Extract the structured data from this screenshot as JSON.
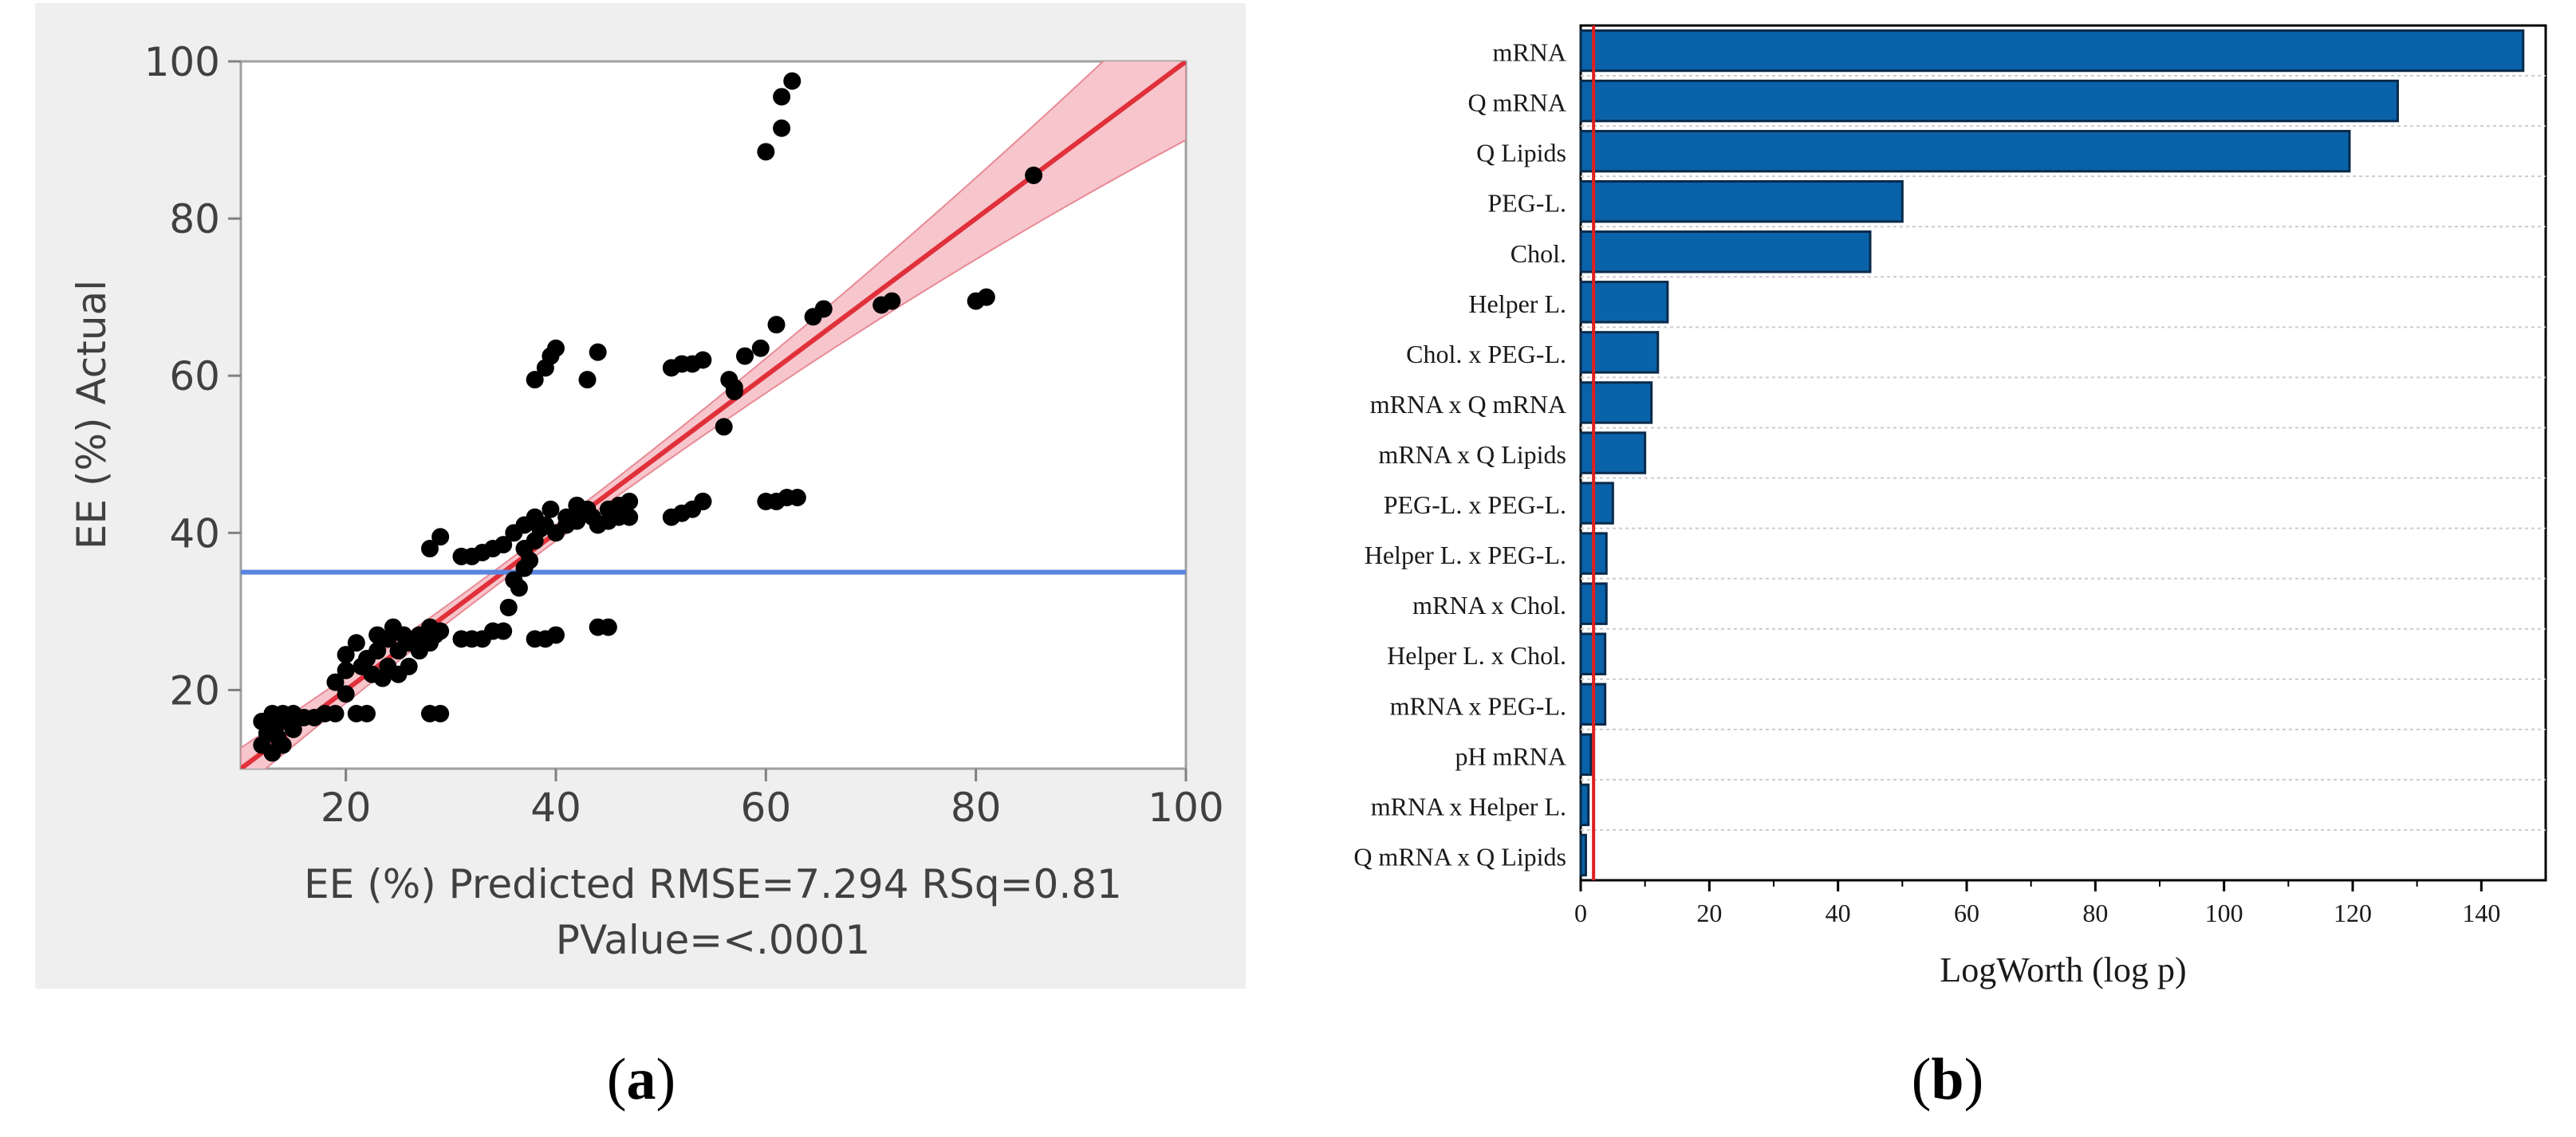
{
  "panel_labels": {
    "a": {
      "open": "(",
      "letter": "a",
      "close": ")"
    },
    "b": {
      "open": "(",
      "letter": "b",
      "close": ")"
    }
  },
  "chart_data": [
    {
      "type": "scatter",
      "panel": "a",
      "title": "",
      "xlabel_line1": "EE (%) Predicted RMSE=7.294 RSq=0.81",
      "xlabel_line2": "PValue=<.0001",
      "ylabel": "EE (%) Actual",
      "xlim": [
        10,
        100
      ],
      "ylim": [
        10,
        100
      ],
      "xticks": [
        "20",
        "40",
        "60",
        "80",
        "100"
      ],
      "yticks": [
        "20",
        "40",
        "60",
        "80",
        "100"
      ],
      "mean_line_y": 35,
      "fit_line": {
        "from": [
          10,
          10
        ],
        "to": [
          100,
          100
        ]
      },
      "colors": {
        "points": "#000000",
        "fit": "#e0303a",
        "band": "#f6c6cc",
        "mean": "#5b84e0",
        "frame": "#a0a0a0"
      },
      "points": [
        [
          12,
          13
        ],
        [
          12,
          16
        ],
        [
          12.5,
          14.5
        ],
        [
          13,
          12
        ],
        [
          13,
          15
        ],
        [
          13,
          17
        ],
        [
          13.5,
          14
        ],
        [
          14,
          13
        ],
        [
          14,
          16
        ],
        [
          14,
          17
        ],
        [
          15,
          15
        ],
        [
          15,
          17
        ],
        [
          16,
          16.5
        ],
        [
          17,
          16.5
        ],
        [
          18,
          17
        ],
        [
          19,
          17
        ],
        [
          19,
          21
        ],
        [
          20,
          19.5
        ],
        [
          20,
          22.5
        ],
        [
          20,
          24.5
        ],
        [
          21,
          26
        ],
        [
          21,
          17
        ],
        [
          21.5,
          23
        ],
        [
          22,
          24
        ],
        [
          22,
          17
        ],
        [
          22.5,
          22
        ],
        [
          23,
          25
        ],
        [
          23,
          27
        ],
        [
          23.5,
          21.5
        ],
        [
          24,
          23
        ],
        [
          24,
          26.5
        ],
        [
          24.5,
          28
        ],
        [
          25,
          22
        ],
        [
          25,
          25
        ],
        [
          25.5,
          27
        ],
        [
          26,
          26
        ],
        [
          26,
          23
        ],
        [
          27,
          25
        ],
        [
          27,
          27
        ],
        [
          27.5,
          26.5
        ],
        [
          28,
          28
        ],
        [
          28,
          26
        ],
        [
          28,
          17
        ],
        [
          28,
          38
        ],
        [
          28.5,
          27
        ],
        [
          29,
          27.5
        ],
        [
          29,
          17
        ],
        [
          29,
          39.5
        ],
        [
          31,
          26.5
        ],
        [
          31,
          37
        ],
        [
          32,
          26.5
        ],
        [
          32,
          37
        ],
        [
          33,
          26.5
        ],
        [
          33,
          37.5
        ],
        [
          34,
          38
        ],
        [
          34,
          27.5
        ],
        [
          35,
          38.5
        ],
        [
          35,
          27.5
        ],
        [
          35.5,
          30.5
        ],
        [
          36,
          34
        ],
        [
          36,
          40
        ],
        [
          36.5,
          33
        ],
        [
          37,
          41
        ],
        [
          37,
          35.5
        ],
        [
          37,
          38
        ],
        [
          37.5,
          36.5
        ],
        [
          38,
          39
        ],
        [
          38,
          42
        ],
        [
          38,
          59.5
        ],
        [
          38,
          26.5
        ],
        [
          38.5,
          40.5
        ],
        [
          39,
          41
        ],
        [
          39,
          61
        ],
        [
          39,
          26.5
        ],
        [
          39.5,
          43
        ],
        [
          39.5,
          62.5
        ],
        [
          40,
          63.5
        ],
        [
          40,
          27
        ],
        [
          40,
          40
        ],
        [
          41,
          42
        ],
        [
          41,
          41
        ],
        [
          42,
          43.5
        ],
        [
          42,
          41.5
        ],
        [
          43,
          43
        ],
        [
          43,
          59.5
        ],
        [
          43.5,
          42
        ],
        [
          44,
          28
        ],
        [
          44,
          41
        ],
        [
          44,
          63
        ],
        [
          45,
          43
        ],
        [
          45,
          41.5
        ],
        [
          45,
          28
        ],
        [
          46,
          43.5
        ],
        [
          46,
          42
        ],
        [
          47,
          44
        ],
        [
          47,
          42
        ],
        [
          51,
          42
        ],
        [
          51,
          61
        ],
        [
          52,
          42.5
        ],
        [
          52,
          61.5
        ],
        [
          53,
          43
        ],
        [
          53,
          61.5
        ],
        [
          54,
          44
        ],
        [
          54,
          62
        ],
        [
          54,
          44
        ],
        [
          56,
          53.5
        ],
        [
          56.5,
          59.5
        ],
        [
          57,
          58
        ],
        [
          57,
          58.5
        ],
        [
          58,
          62.5
        ],
        [
          59.5,
          63.5
        ],
        [
          60,
          88.5
        ],
        [
          60,
          44
        ],
        [
          61,
          44
        ],
        [
          61,
          66.5
        ],
        [
          61.5,
          91.5
        ],
        [
          61.5,
          95.5
        ],
        [
          62,
          44.5
        ],
        [
          62.5,
          97.5
        ],
        [
          63,
          44.5
        ],
        [
          64.5,
          67.5
        ],
        [
          65.5,
          68.5
        ],
        [
          71,
          69
        ],
        [
          72,
          69.5
        ],
        [
          80,
          69.5
        ],
        [
          81,
          70
        ],
        [
          85.5,
          85.5
        ]
      ]
    },
    {
      "type": "bar",
      "panel": "b",
      "orientation": "horizontal",
      "title": "",
      "xlabel": "LogWorth (log p)",
      "ylabel": "",
      "xlim": [
        0,
        150
      ],
      "xticks": [
        "0",
        "20",
        "40",
        "60",
        "80",
        "100",
        "120",
        "140"
      ],
      "threshold": 2,
      "colors": {
        "bar": "#0a62a9",
        "bar_edge": "#0a2a4a",
        "threshold": "#e02020",
        "grid": "#cccccc"
      },
      "categories": [
        "mRNA",
        "Q mRNA",
        "Q Lipids",
        "PEG-L.",
        "Chol.",
        "Helper L.",
        "Chol. x PEG-L.",
        "mRNA x Q mRNA",
        "mRNA x Q Lipids",
        "PEG-L. x PEG-L.",
        "Helper L. x PEG-L.",
        "mRNA x Chol.",
        "Helper L. x Chol.",
        "mRNA x PEG-L.",
        "pH mRNA",
        "mRNA x Helper L.",
        "Q mRNA x Q Lipids"
      ],
      "values": [
        146.5,
        127,
        119.5,
        50,
        45,
        13.5,
        12,
        11,
        10,
        5,
        4,
        4,
        3.8,
        3.8,
        1.6,
        1.2,
        0.8
      ]
    }
  ]
}
